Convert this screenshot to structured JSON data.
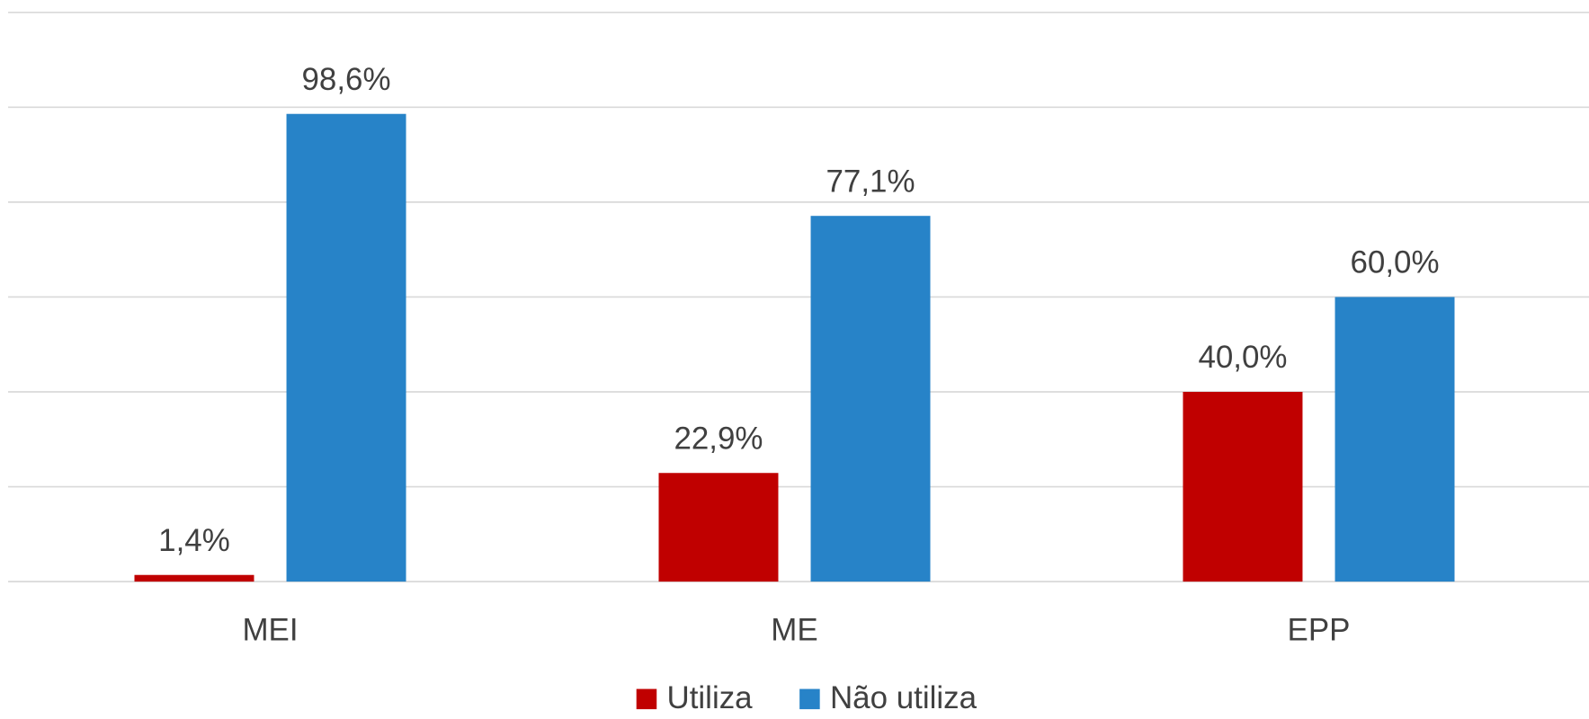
{
  "chart_data": {
    "type": "bar",
    "categories": [
      "MEI",
      "ME",
      "EPP"
    ],
    "series": [
      {
        "name": "Utiliza",
        "color": "#c00000",
        "values": [
          1.4,
          22.9,
          40.0
        ],
        "value_labels": [
          "1,4%",
          "22,9%",
          "40,0%"
        ]
      },
      {
        "name": "Não utiliza",
        "color": "#2783c8",
        "values": [
          98.6,
          77.1,
          60.0
        ],
        "value_labels": [
          "98,6%",
          "77,1%",
          "60,0%"
        ]
      }
    ],
    "ylim": [
      0,
      120
    ],
    "yticks": [
      0,
      20,
      40,
      60,
      80,
      100,
      120
    ],
    "grid": true,
    "legend": "bottom"
  }
}
